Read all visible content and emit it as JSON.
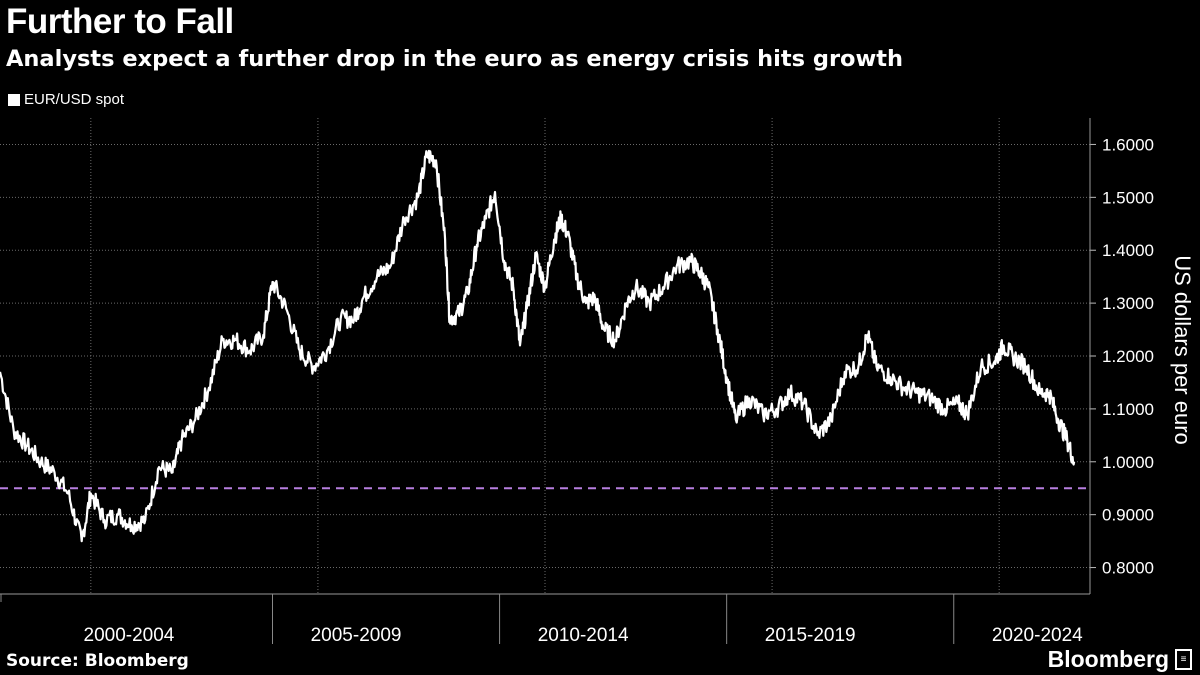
{
  "title": "Further to Fall",
  "subtitle": "Analysts expect a further drop in the euro as energy crisis hits growth",
  "source": "Source: Bloomberg",
  "brand": "Bloomberg",
  "colors": {
    "line": "#ffffff",
    "reference": "#b77fe0",
    "grid": "#6a6a6a",
    "background": "#000000"
  },
  "chart_data": {
    "type": "line",
    "title": "Further to Fall",
    "ylabel": "US dollars per euro",
    "xlabel": "",
    "ylim": [
      0.75,
      1.65
    ],
    "xlim": [
      1999.0,
      2023.0
    ],
    "y_ticks": [
      0.8,
      0.9,
      1.0,
      1.1,
      1.2,
      1.3,
      1.4,
      1.5,
      1.6
    ],
    "y_tick_labels": [
      "0.8000",
      "0.9000",
      "1.0000",
      "1.1000",
      "1.2000",
      "1.3000",
      "1.4000",
      "1.5000",
      "1.6000"
    ],
    "x_gridlines": [
      2001.0,
      2006.0,
      2011.0,
      2016.0,
      2021.0
    ],
    "x_category_bounds": [
      2000.0,
      2005.0,
      2010.0,
      2015.0,
      2020.0
    ],
    "x_categories": [
      "2000-2004",
      "2005-2009",
      "2010-2014",
      "2015-2019",
      "2020-2024"
    ],
    "grid": true,
    "legend": "top-left",
    "series": [
      {
        "name": "EUR/USD spot",
        "x": [
          1999.0,
          1999.3,
          1999.6,
          1999.9,
          2000.2,
          2000.5,
          2000.8,
          2001.0,
          2001.3,
          2001.6,
          2001.9,
          2002.2,
          2002.5,
          2002.8,
          2003.0,
          2003.3,
          2003.6,
          2003.9,
          2004.2,
          2004.5,
          2004.8,
          2005.0,
          2005.3,
          2005.6,
          2005.9,
          2006.2,
          2006.5,
          2006.8,
          2007.0,
          2007.3,
          2007.6,
          2007.9,
          2008.2,
          2008.4,
          2008.6,
          2008.8,
          2008.9,
          2009.1,
          2009.3,
          2009.5,
          2009.7,
          2009.9,
          2010.1,
          2010.3,
          2010.45,
          2010.6,
          2010.8,
          2011.0,
          2011.2,
          2011.35,
          2011.5,
          2011.7,
          2011.9,
          2012.1,
          2012.3,
          2012.55,
          2012.8,
          2013.0,
          2013.3,
          2013.6,
          2013.9,
          2014.2,
          2014.4,
          2014.6,
          2014.8,
          2015.0,
          2015.2,
          2015.5,
          2015.8,
          2016.1,
          2016.4,
          2016.7,
          2017.0,
          2017.3,
          2017.6,
          2017.9,
          2018.1,
          2018.3,
          2018.6,
          2018.9,
          2019.2,
          2019.5,
          2019.8,
          2020.1,
          2020.3,
          2020.6,
          2020.9,
          2021.1,
          2021.3,
          2021.6,
          2021.9,
          2022.1,
          2022.3,
          2022.5,
          2022.65
        ],
        "values": [
          1.17,
          1.06,
          1.03,
          1.0,
          0.98,
          0.94,
          0.85,
          0.94,
          0.89,
          0.9,
          0.88,
          0.89,
          0.99,
          0.98,
          1.04,
          1.08,
          1.14,
          1.23,
          1.23,
          1.21,
          1.24,
          1.34,
          1.29,
          1.21,
          1.18,
          1.21,
          1.27,
          1.27,
          1.31,
          1.35,
          1.37,
          1.46,
          1.5,
          1.58,
          1.57,
          1.42,
          1.27,
          1.28,
          1.32,
          1.41,
          1.46,
          1.51,
          1.38,
          1.33,
          1.22,
          1.29,
          1.39,
          1.33,
          1.42,
          1.46,
          1.43,
          1.35,
          1.3,
          1.31,
          1.25,
          1.23,
          1.3,
          1.33,
          1.3,
          1.33,
          1.37,
          1.38,
          1.36,
          1.33,
          1.25,
          1.16,
          1.08,
          1.12,
          1.09,
          1.1,
          1.13,
          1.11,
          1.05,
          1.08,
          1.17,
          1.18,
          1.24,
          1.18,
          1.16,
          1.14,
          1.13,
          1.12,
          1.1,
          1.11,
          1.09,
          1.18,
          1.19,
          1.22,
          1.2,
          1.18,
          1.13,
          1.13,
          1.08,
          1.04,
          1.0
        ]
      }
    ],
    "reference_lines": [
      {
        "orientation": "horizontal",
        "value": 0.95,
        "style": "dashed"
      }
    ]
  }
}
